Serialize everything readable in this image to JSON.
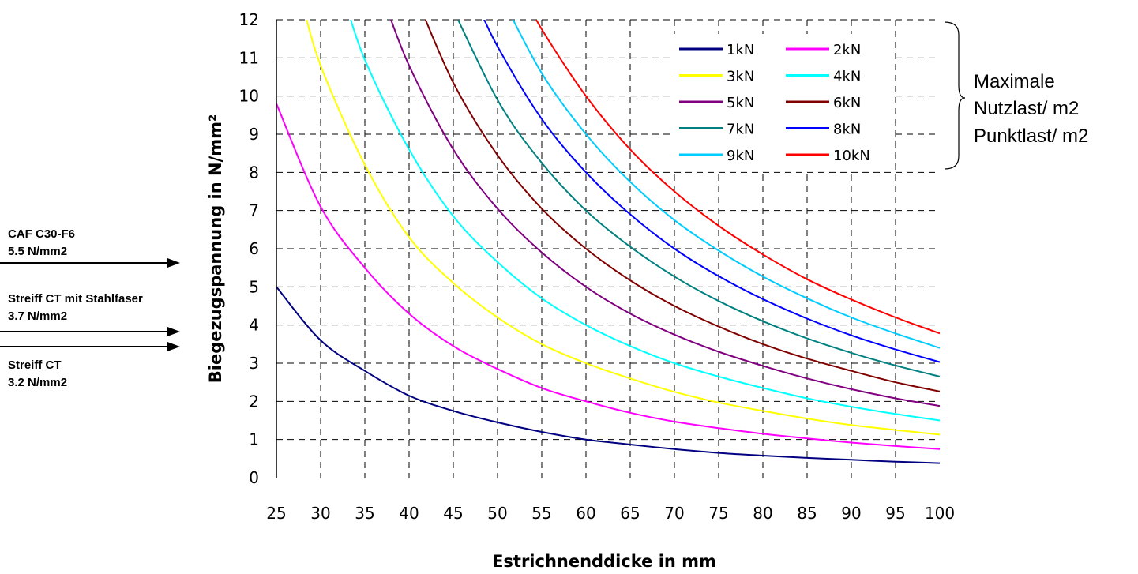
{
  "chart_data": {
    "type": "line",
    "xlabel": "Estrichnenddicke in mm",
    "ylabel": "Biegezugspannung in N/mm²",
    "xlim": [
      25,
      100
    ],
    "ylim": [
      0,
      12
    ],
    "x_ticks": [
      "25",
      "30",
      "35",
      "40",
      "45",
      "50",
      "55",
      "60",
      "65",
      "70",
      "75",
      "80",
      "85",
      "90",
      "95",
      "100"
    ],
    "y_ticks": [
      "0",
      "1",
      "2",
      "3",
      "4",
      "5",
      "6",
      "7",
      "8",
      "9",
      "10",
      "11",
      "12"
    ],
    "grid": "dashed",
    "legend_position": "top-right",
    "x": [
      25,
      30,
      35,
      40,
      45,
      50,
      55,
      60,
      65,
      70,
      75,
      80,
      85,
      90,
      95,
      100
    ],
    "series": [
      {
        "name": "1kN",
        "color": "#000080",
        "values": [
          5.0,
          3.6,
          2.8,
          2.15,
          1.75,
          1.45,
          1.2,
          1.0,
          0.87,
          0.75,
          0.65,
          0.58,
          0.52,
          0.47,
          0.42,
          0.38
        ]
      },
      {
        "name": "2kN",
        "color": "#ff00ff",
        "values": [
          9.8,
          7.1,
          5.5,
          4.3,
          3.45,
          2.85,
          2.35,
          2.0,
          1.7,
          1.47,
          1.3,
          1.15,
          1.03,
          0.92,
          0.83,
          0.75
        ]
      },
      {
        "name": "3kN",
        "color": "#ffff00",
        "values": [
          null,
          10.8,
          8.2,
          6.3,
          5.1,
          4.2,
          3.5,
          3.0,
          2.6,
          2.25,
          1.97,
          1.75,
          1.55,
          1.38,
          1.25,
          1.13
        ]
      },
      {
        "name": "4kN",
        "color": "#00ffff",
        "values": [
          null,
          null,
          10.95,
          8.6,
          6.85,
          5.65,
          4.7,
          4.0,
          3.45,
          3.0,
          2.65,
          2.35,
          2.08,
          1.86,
          1.67,
          1.5
        ]
      },
      {
        "name": "5kN",
        "color": "#800080",
        "values": [
          null,
          null,
          null,
          10.8,
          8.6,
          7.05,
          5.9,
          5.0,
          4.3,
          3.75,
          3.3,
          2.93,
          2.6,
          2.32,
          2.08,
          1.88
        ]
      },
      {
        "name": "6kN",
        "color": "#800000",
        "values": [
          null,
          null,
          null,
          null,
          10.35,
          8.45,
          7.05,
          6.0,
          5.17,
          4.5,
          3.96,
          3.5,
          3.12,
          2.8,
          2.5,
          2.26
        ]
      },
      {
        "name": "7kN",
        "color": "#008080",
        "values": [
          null,
          null,
          null,
          null,
          null,
          9.9,
          8.25,
          7.0,
          6.05,
          5.27,
          4.63,
          4.1,
          3.65,
          3.27,
          2.94,
          2.65
        ]
      },
      {
        "name": "8kN",
        "color": "#0000ff",
        "values": [
          null,
          null,
          null,
          null,
          null,
          11.3,
          9.4,
          8.0,
          6.9,
          6.0,
          5.28,
          4.68,
          4.17,
          3.73,
          3.36,
          3.03
        ]
      },
      {
        "name": "9kN",
        "color": "#00ccff",
        "values": [
          null,
          null,
          null,
          null,
          null,
          null,
          10.6,
          9.0,
          7.75,
          6.75,
          5.95,
          5.27,
          4.7,
          4.2,
          3.78,
          3.4
        ]
      },
      {
        "name": "10kN",
        "color": "#ff0000",
        "values": [
          null,
          null,
          null,
          null,
          null,
          null,
          11.75,
          10.0,
          8.6,
          7.5,
          6.6,
          5.85,
          5.2,
          4.67,
          4.2,
          3.78
        ]
      }
    ],
    "legend_group_label": [
      "Maximale",
      "Nutzlast/ m2",
      "Punktlast/ m2"
    ],
    "annotations": [
      {
        "line1": "CAF C30-F6",
        "line2": "5.5 N/mm2"
      },
      {
        "line1": "Streiff CT mit Stahlfaser",
        "line2": "3.7 N/mm2"
      },
      {
        "line1": "Streiff  CT",
        "line2": "3.2 N/mm2"
      }
    ]
  }
}
